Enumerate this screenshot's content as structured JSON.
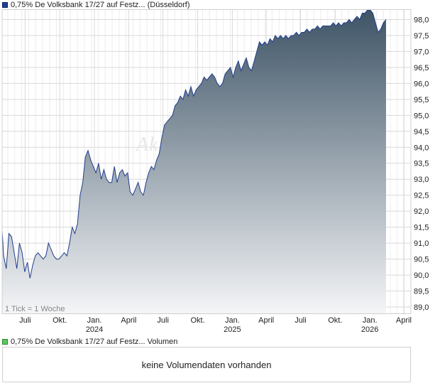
{
  "legend": {
    "price_label": "0,75% De Volksbank 17/27 auf Festz... (Düsseldorf)",
    "volume_label": "0,75% De Volksbank 17/27 auf Festz... Volumen"
  },
  "watermark": "Aktie",
  "tick_note": "1 Tick = 1 Woche",
  "volume_message": "keine Volumendaten vorhanden",
  "colors": {
    "line": "#1f3d8c",
    "fill_top": "#3e5466",
    "fill_bottom": "#f4f5f7",
    "grid": "#d9d9d9"
  },
  "chart_data": {
    "type": "area",
    "ylim": [
      88.8,
      98.3
    ],
    "yticks": [
      "89,0",
      "89,5",
      "90,0",
      "90,5",
      "91,0",
      "91,5",
      "92,0",
      "92,5",
      "93,0",
      "93,5",
      "94,0",
      "94,5",
      "95,0",
      "95,5",
      "96,0",
      "96,5",
      "97,0",
      "97,5",
      "98,0"
    ],
    "ytick_values": [
      89.0,
      89.5,
      90.0,
      90.5,
      91.0,
      91.5,
      92.0,
      92.5,
      93.0,
      93.5,
      94.0,
      94.5,
      95.0,
      95.5,
      96.0,
      96.5,
      97.0,
      97.5,
      98.0
    ],
    "xlim": [
      "2023-05-01",
      "2026-04-20"
    ],
    "xticks": [
      {
        "label": "Juli",
        "year": "",
        "date": "2023-07-01"
      },
      {
        "label": "Okt.",
        "year": "",
        "date": "2023-10-01"
      },
      {
        "label": "Jan.",
        "year": "2024",
        "date": "2024-01-01"
      },
      {
        "label": "April",
        "year": "",
        "date": "2024-04-01"
      },
      {
        "label": "Juli",
        "year": "",
        "date": "2024-07-01"
      },
      {
        "label": "Okt.",
        "year": "",
        "date": "2024-10-01"
      },
      {
        "label": "Jan.",
        "year": "2025",
        "date": "2025-01-01"
      },
      {
        "label": "April",
        "year": "",
        "date": "2025-04-01"
      },
      {
        "label": "Juli",
        "year": "",
        "date": "2025-07-01"
      },
      {
        "label": "Okt.",
        "year": "",
        "date": "2025-10-01"
      },
      {
        "label": "Jan.",
        "year": "2026",
        "date": "2026-01-01"
      },
      {
        "label": "April",
        "year": "",
        "date": "2026-04-01"
      }
    ],
    "grid": true,
    "points": [
      [
        "2023-05-01",
        91.4
      ],
      [
        "2023-05-05",
        90.6
      ],
      [
        "2023-05-12",
        90.2
      ],
      [
        "2023-05-19",
        91.3
      ],
      [
        "2023-05-26",
        91.2
      ],
      [
        "2023-06-02",
        90.7
      ],
      [
        "2023-06-09",
        90.2
      ],
      [
        "2023-06-16",
        91.0
      ],
      [
        "2023-06-23",
        90.7
      ],
      [
        "2023-06-30",
        90.1
      ],
      [
        "2023-07-07",
        90.4
      ],
      [
        "2023-07-14",
        89.9
      ],
      [
        "2023-07-21",
        90.3
      ],
      [
        "2023-07-28",
        90.6
      ],
      [
        "2023-08-04",
        90.7
      ],
      [
        "2023-08-11",
        90.6
      ],
      [
        "2023-08-18",
        90.5
      ],
      [
        "2023-08-25",
        90.6
      ],
      [
        "2023-09-01",
        91.0
      ],
      [
        "2023-09-08",
        90.8
      ],
      [
        "2023-09-15",
        90.6
      ],
      [
        "2023-09-22",
        90.5
      ],
      [
        "2023-09-29",
        90.5
      ],
      [
        "2023-10-06",
        90.6
      ],
      [
        "2023-10-13",
        90.7
      ],
      [
        "2023-10-20",
        90.6
      ],
      [
        "2023-10-27",
        91.0
      ],
      [
        "2023-11-03",
        91.5
      ],
      [
        "2023-11-10",
        91.3
      ],
      [
        "2023-11-17",
        91.6
      ],
      [
        "2023-11-24",
        92.5
      ],
      [
        "2023-12-01",
        92.9
      ],
      [
        "2023-12-08",
        93.7
      ],
      [
        "2023-12-15",
        93.9
      ],
      [
        "2023-12-22",
        93.6
      ],
      [
        "2023-12-29",
        93.4
      ],
      [
        "2024-01-05",
        93.2
      ],
      [
        "2024-01-12",
        93.5
      ],
      [
        "2024-01-19",
        93.0
      ],
      [
        "2024-01-26",
        93.3
      ],
      [
        "2024-02-02",
        93.0
      ],
      [
        "2024-02-09",
        92.9
      ],
      [
        "2024-02-16",
        92.9
      ],
      [
        "2024-02-23",
        93.4
      ],
      [
        "2024-03-01",
        92.9
      ],
      [
        "2024-03-08",
        93.2
      ],
      [
        "2024-03-15",
        93.3
      ],
      [
        "2024-03-22",
        93.1
      ],
      [
        "2024-03-29",
        93.2
      ],
      [
        "2024-04-05",
        92.6
      ],
      [
        "2024-04-12",
        92.5
      ],
      [
        "2024-04-19",
        92.7
      ],
      [
        "2024-04-26",
        92.9
      ],
      [
        "2024-05-03",
        92.6
      ],
      [
        "2024-05-10",
        92.5
      ],
      [
        "2024-05-17",
        92.9
      ],
      [
        "2024-05-24",
        93.2
      ],
      [
        "2024-05-31",
        93.4
      ],
      [
        "2024-06-07",
        93.3
      ],
      [
        "2024-06-14",
        93.6
      ],
      [
        "2024-06-21",
        93.8
      ],
      [
        "2024-06-28",
        94.3
      ],
      [
        "2024-07-05",
        94.7
      ],
      [
        "2024-07-12",
        94.8
      ],
      [
        "2024-07-19",
        94.9
      ],
      [
        "2024-07-26",
        95.0
      ],
      [
        "2024-08-02",
        95.3
      ],
      [
        "2024-08-09",
        95.4
      ],
      [
        "2024-08-16",
        95.6
      ],
      [
        "2024-08-23",
        95.5
      ],
      [
        "2024-08-30",
        95.8
      ],
      [
        "2024-09-06",
        95.6
      ],
      [
        "2024-09-13",
        95.9
      ],
      [
        "2024-09-20",
        95.6
      ],
      [
        "2024-09-27",
        95.8
      ],
      [
        "2024-10-04",
        95.9
      ],
      [
        "2024-10-11",
        96.0
      ],
      [
        "2024-10-18",
        96.2
      ],
      [
        "2024-10-25",
        96.1
      ],
      [
        "2024-11-01",
        96.2
      ],
      [
        "2024-11-08",
        96.3
      ],
      [
        "2024-11-15",
        96.2
      ],
      [
        "2024-11-22",
        96.0
      ],
      [
        "2024-11-29",
        95.9
      ],
      [
        "2024-12-06",
        96.0
      ],
      [
        "2024-12-13",
        96.3
      ],
      [
        "2024-12-20",
        96.4
      ],
      [
        "2024-12-27",
        96.5
      ],
      [
        "2025-01-03",
        96.2
      ],
      [
        "2025-01-10",
        96.5
      ],
      [
        "2025-01-17",
        96.7
      ],
      [
        "2025-01-24",
        96.4
      ],
      [
        "2025-01-31",
        96.6
      ],
      [
        "2025-02-07",
        96.8
      ],
      [
        "2025-02-14",
        96.5
      ],
      [
        "2025-02-21",
        96.4
      ],
      [
        "2025-02-28",
        96.7
      ],
      [
        "2025-03-07",
        97.0
      ],
      [
        "2025-03-14",
        97.3
      ],
      [
        "2025-03-21",
        97.2
      ],
      [
        "2025-03-28",
        97.3
      ],
      [
        "2025-04-04",
        97.2
      ],
      [
        "2025-04-11",
        97.4
      ],
      [
        "2025-04-18",
        97.3
      ],
      [
        "2025-04-25",
        97.5
      ],
      [
        "2025-05-02",
        97.4
      ],
      [
        "2025-05-09",
        97.5
      ],
      [
        "2025-05-16",
        97.4
      ],
      [
        "2025-05-23",
        97.5
      ],
      [
        "2025-05-30",
        97.4
      ],
      [
        "2025-06-06",
        97.5
      ],
      [
        "2025-06-13",
        97.5
      ],
      [
        "2025-06-20",
        97.6
      ],
      [
        "2025-06-27",
        97.5
      ],
      [
        "2025-07-04",
        97.6
      ],
      [
        "2025-07-11",
        97.6
      ],
      [
        "2025-07-18",
        97.7
      ],
      [
        "2025-07-25",
        97.6
      ],
      [
        "2025-08-01",
        97.7
      ],
      [
        "2025-08-08",
        97.7
      ],
      [
        "2025-08-15",
        97.8
      ],
      [
        "2025-08-22",
        97.7
      ],
      [
        "2025-08-29",
        97.8
      ],
      [
        "2025-09-05",
        97.8
      ],
      [
        "2025-09-12",
        97.8
      ],
      [
        "2025-09-19",
        97.8
      ],
      [
        "2025-09-26",
        97.9
      ],
      [
        "2025-10-03",
        97.8
      ],
      [
        "2025-10-10",
        97.9
      ],
      [
        "2025-10-17",
        97.8
      ],
      [
        "2025-10-24",
        97.9
      ],
      [
        "2025-10-31",
        97.9
      ],
      [
        "2025-11-07",
        98.0
      ],
      [
        "2025-11-14",
        97.9
      ],
      [
        "2025-11-21",
        98.0
      ],
      [
        "2025-11-28",
        98.1
      ],
      [
        "2025-12-05",
        98.0
      ],
      [
        "2025-12-12",
        98.2
      ],
      [
        "2025-12-19",
        98.2
      ],
      [
        "2025-12-26",
        98.3
      ],
      [
        "2026-01-02",
        98.3
      ],
      [
        "2026-01-09",
        98.2
      ],
      [
        "2026-01-16",
        97.9
      ],
      [
        "2026-01-23",
        97.6
      ],
      [
        "2026-01-30",
        97.7
      ],
      [
        "2026-02-06",
        97.9
      ],
      [
        "2026-02-13",
        98.0
      ]
    ]
  }
}
